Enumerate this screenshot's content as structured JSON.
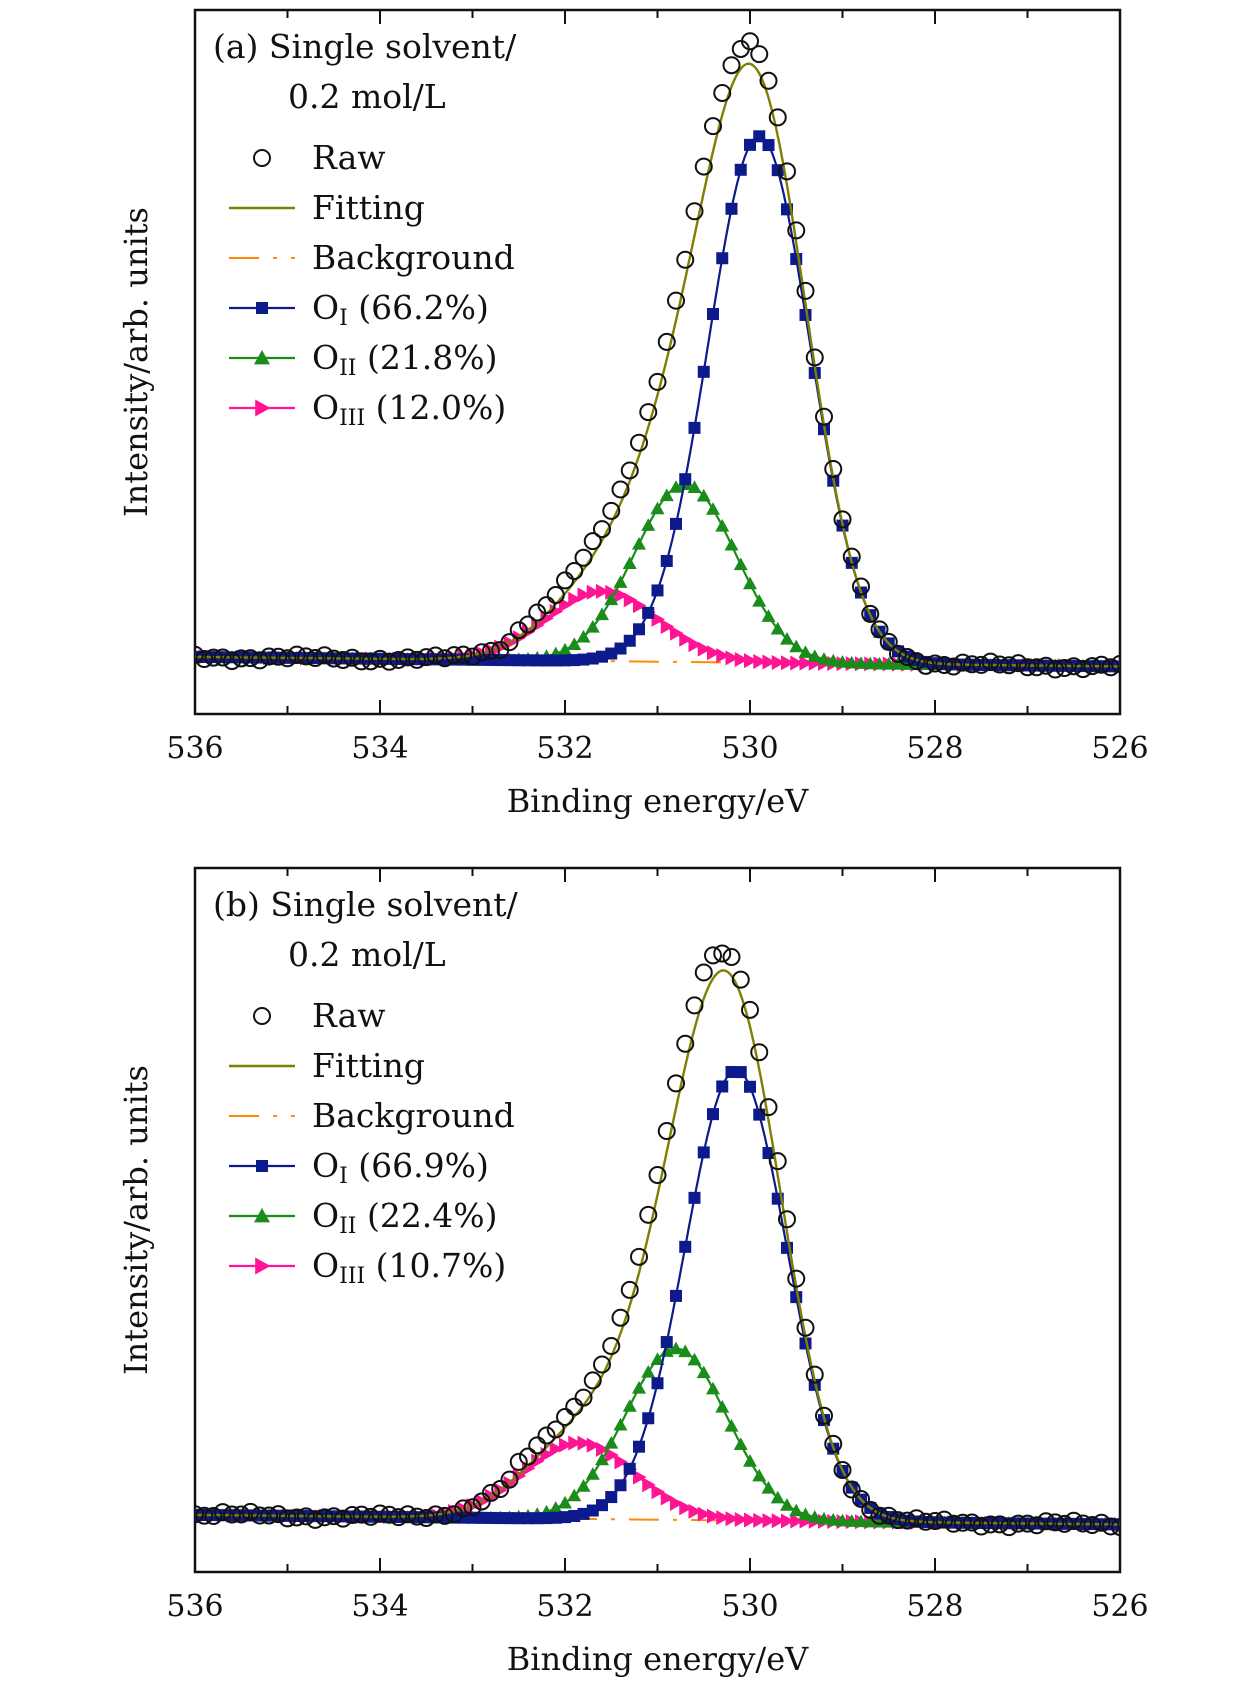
{
  "chart_data": [
    {
      "type": "line",
      "panel": "a",
      "title_line1": "(a) Single solvent/",
      "title_line2": "0.2 mol/L",
      "xlabel": "Binding energy/eV",
      "ylabel": "Intensity/arb. units",
      "xlim": [
        536,
        526
      ],
      "ylim": [
        -0.09,
        1.02
      ],
      "xticks": [
        "536",
        "534",
        "532",
        "530",
        "528",
        "526"
      ],
      "grid": false,
      "legend_position": "top-left",
      "peak_params": {
        "OI": {
          "center": 529.9,
          "height": 0.83,
          "width": 0.55
        },
        "OII": {
          "center": 530.7,
          "height": 0.28,
          "width": 0.55
        },
        "OIII": {
          "center": 531.6,
          "height": 0.11,
          "width": 0.6
        }
      },
      "background": {
        "y_at_536": 0.0,
        "y_at_526": -0.015
      },
      "legend": [
        {
          "key": "raw",
          "label": "Raw",
          "sub": "",
          "suffix": "",
          "color": "#111111"
        },
        {
          "key": "fit",
          "label": "Fitting",
          "sub": "",
          "suffix": "",
          "color": "#808000"
        },
        {
          "key": "bg",
          "label": "Background",
          "sub": "",
          "suffix": "",
          "color": "#ff8c00"
        },
        {
          "key": "OI",
          "label": "O",
          "sub": "I",
          "suffix": " (66.2%)",
          "color": "#0d1a8c"
        },
        {
          "key": "OII",
          "label": "O",
          "sub": "II",
          "suffix": " (21.8%)",
          "color": "#1a8c1a"
        },
        {
          "key": "OIII",
          "label": "O",
          "sub": "III",
          "suffix": " (12.0%)",
          "color": "#ff1493"
        }
      ]
    },
    {
      "type": "line",
      "panel": "b",
      "title_line1": "(b) Single solvent/",
      "title_line2": "0.2 mol/L",
      "xlabel": "Binding energy/eV",
      "ylabel": "Intensity/arb. units",
      "xlim": [
        536,
        526
      ],
      "ylim": [
        -0.09,
        1.02
      ],
      "xticks": [
        "536",
        "534",
        "532",
        "530",
        "528",
        "526"
      ],
      "grid": false,
      "legend_position": "top-left",
      "peak_params": {
        "OI": {
          "center": 530.15,
          "height": 0.71,
          "width": 0.55
        },
        "OII": {
          "center": 530.8,
          "height": 0.27,
          "width": 0.55
        },
        "OIII": {
          "center": 531.85,
          "height": 0.12,
          "width": 0.6
        }
      },
      "background": {
        "y_at_536": 0.0,
        "y_at_526": -0.015
      },
      "legend": [
        {
          "key": "raw",
          "label": "Raw",
          "sub": "",
          "suffix": "",
          "color": "#111111"
        },
        {
          "key": "fit",
          "label": "Fitting",
          "sub": "",
          "suffix": "",
          "color": "#808000"
        },
        {
          "key": "bg",
          "label": "Background",
          "sub": "",
          "suffix": "",
          "color": "#ff8c00"
        },
        {
          "key": "OI",
          "label": "O",
          "sub": "I",
          "suffix": " (66.9%)",
          "color": "#0d1a8c"
        },
        {
          "key": "OII",
          "label": "O",
          "sub": "II",
          "suffix": " (22.4%)",
          "color": "#1a8c1a"
        },
        {
          "key": "OIII",
          "label": "O",
          "sub": "III",
          "suffix": " (10.7%)",
          "color": "#ff1493"
        }
      ]
    }
  ]
}
